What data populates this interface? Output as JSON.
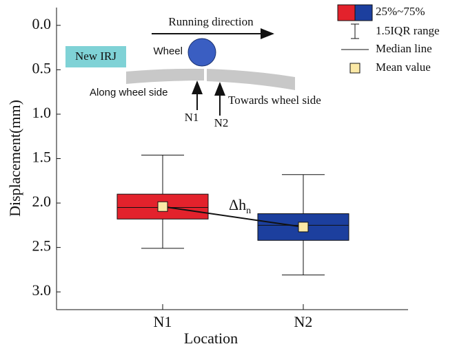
{
  "chart_data": {
    "type": "box",
    "x_label": "Location",
    "y_label": "Displacement(mm)",
    "categories": [
      "N1",
      "N2"
    ],
    "boxes": [
      {
        "color": "#e3222c",
        "whisker_min": 1.46,
        "q1": 1.9,
        "median": 2.05,
        "q3": 2.18,
        "whisker_max": 2.51,
        "mean": 2.04
      },
      {
        "color": "#1c3f9e",
        "whisker_min": 1.68,
        "q1": 2.12,
        "median": 2.25,
        "q3": 2.42,
        "whisker_max": 2.81,
        "mean": 2.27
      }
    ],
    "mean_color": "#fbe9a6",
    "ylim": [
      -0.2,
      3.2
    ],
    "y_inverted": true,
    "yticks": [
      {
        "value": 0,
        "label": "0.0"
      },
      0.5,
      {
        "value": 1,
        "label": "1.0"
      },
      1.5,
      {
        "value": 2,
        "label": "2.0"
      },
      2.5,
      {
        "value": 3,
        "label": "3.0"
      }
    ],
    "legend": [
      "25%~75%",
      "1.5IQR range",
      "Median line",
      "Mean value"
    ],
    "annotation": {
      "text": "Δh",
      "subscript": "n"
    },
    "inset": {
      "direction": "Running direction",
      "wheel": "Wheel",
      "joint": "New IRJ",
      "left_side": "Along wheel side",
      "right_side": "Towards wheel side",
      "point1": "N1",
      "point2": "N2"
    }
  }
}
